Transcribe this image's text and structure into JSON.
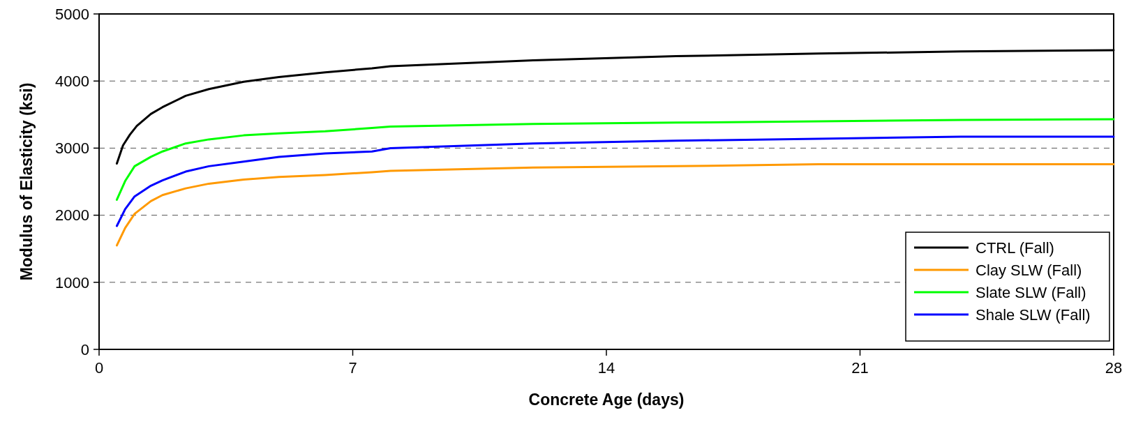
{
  "chart_data": {
    "type": "line",
    "xlabel": "Concrete Age (days)",
    "ylabel": "Modulus of Elasticity (ksi)",
    "xlim": [
      0,
      28
    ],
    "xticks": [
      0,
      7,
      14,
      21,
      28
    ],
    "ylim": [
      0,
      5000
    ],
    "yticks": [
      0,
      1000,
      2000,
      3000,
      4000,
      5000
    ],
    "grid": "y",
    "legend": "bottom right",
    "marker": "none",
    "line_style": "solid",
    "series": [
      {
        "name": "CTRL (Fall)",
        "color": "#000000",
        "x": [
          0.49,
          0.66,
          0.85,
          1.04,
          1.43,
          1.75,
          2.39,
          3.03,
          3.99,
          4.96,
          6.24,
          7.53,
          8.04,
          11.98,
          15.92,
          19.85,
          23.78,
          28
        ],
        "values": [
          2770,
          3040,
          3200,
          3330,
          3510,
          3610,
          3780,
          3880,
          3990,
          4060,
          4130,
          4190,
          4220,
          4310,
          4370,
          4410,
          4440,
          4460
        ]
      },
      {
        "name": "Clay SLW (Fall)",
        "color": "#ff9900",
        "x": [
          0.49,
          0.72,
          0.98,
          1.43,
          1.75,
          2.39,
          3.03,
          3.99,
          4.96,
          6.24,
          7.53,
          8.04,
          11.98,
          15.92,
          19.85,
          23.78,
          28
        ],
        "values": [
          1550,
          1810,
          2020,
          2210,
          2300,
          2400,
          2470,
          2530,
          2570,
          2600,
          2640,
          2660,
          2710,
          2730,
          2760,
          2760,
          2760
        ]
      },
      {
        "name": "Slate SLW (Fall)",
        "color": "#00ff00",
        "x": [
          0.49,
          0.72,
          0.98,
          1.43,
          1.75,
          2.39,
          3.03,
          3.99,
          4.96,
          6.24,
          7.53,
          8.04,
          11.98,
          15.92,
          19.85,
          23.78,
          28
        ],
        "values": [
          2230,
          2510,
          2730,
          2870,
          2950,
          3070,
          3130,
          3190,
          3220,
          3250,
          3300,
          3320,
          3360,
          3380,
          3400,
          3420,
          3430
        ]
      },
      {
        "name": "Shale SLW (Fall)",
        "color": "#0000ff",
        "x": [
          0.49,
          0.72,
          0.98,
          1.43,
          1.75,
          2.39,
          3.03,
          3.99,
          4.96,
          6.24,
          7.53,
          8.04,
          11.98,
          15.92,
          19.85,
          23.78,
          28
        ],
        "values": [
          1840,
          2090,
          2280,
          2440,
          2520,
          2650,
          2730,
          2800,
          2870,
          2920,
          2950,
          3000,
          3070,
          3110,
          3140,
          3170,
          3170
        ]
      }
    ]
  }
}
